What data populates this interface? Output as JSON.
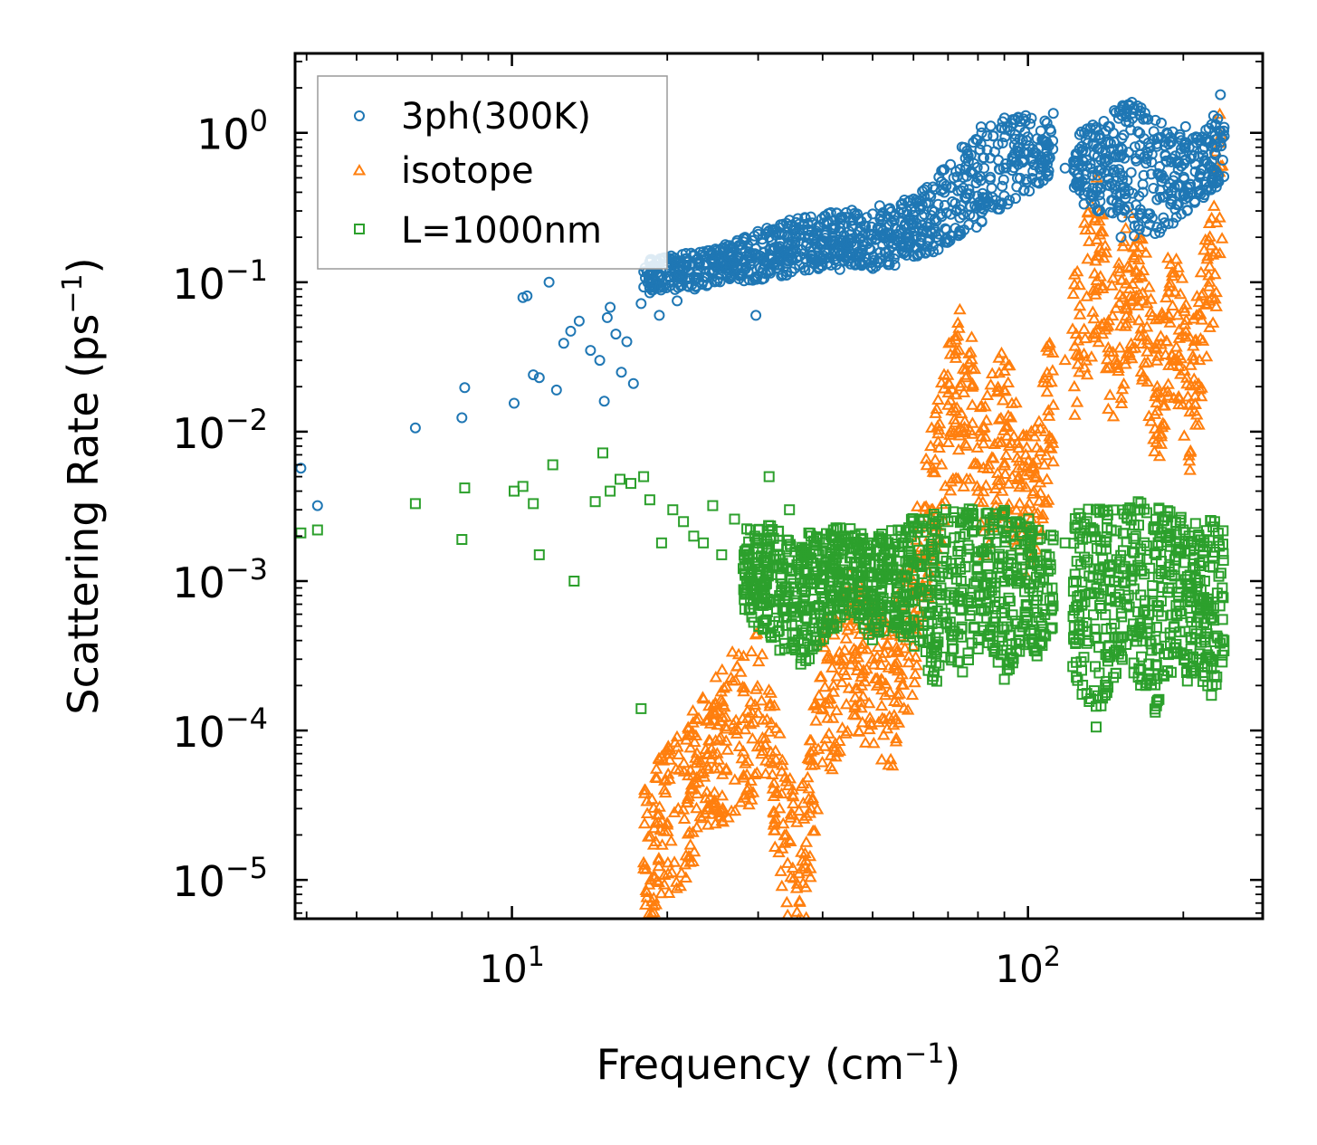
{
  "chart_data": {
    "type": "scatter",
    "xscale": "log",
    "yscale": "log",
    "xlim": [
      3.8,
      285
    ],
    "ylim": [
      5.5e-06,
      3.4
    ],
    "xlabel": "Frequency (cm",
    "xlabel_sup": "−1",
    "xlabel_end": ")",
    "ylabel": "Scattering Rate (ps",
    "ylabel_sup": "−1",
    "ylabel_end": ")",
    "x_ticks": [
      {
        "value": 10,
        "base": "10",
        "exp": "1"
      },
      {
        "value": 100,
        "base": "10",
        "exp": "2"
      }
    ],
    "y_ticks": [
      {
        "value": 1,
        "base": "10",
        "exp": "0"
      },
      {
        "value": 0.1,
        "base": "10",
        "exp": "−1"
      },
      {
        "value": 0.01,
        "base": "10",
        "exp": "−2"
      },
      {
        "value": 0.001,
        "base": "10",
        "exp": "−3"
      },
      {
        "value": 0.0001,
        "base": "10",
        "exp": "−4"
      },
      {
        "value": 1e-05,
        "base": "10",
        "exp": "−5"
      }
    ],
    "legend_position": "top-left",
    "series": [
      {
        "name": "3ph(300K)",
        "marker": "circle",
        "color": "#1f77b4",
        "x": [
          3.9,
          4.2,
          6.5,
          8.0,
          8.1,
          10.1,
          10.5,
          10.7,
          11.0,
          11.3,
          11.8,
          12.2,
          12.6,
          13.0,
          13.5,
          14.2,
          14.8,
          15.1,
          15.3,
          15.5,
          15.9,
          16.3,
          16.7,
          17.2,
          17.8,
          18.5,
          19.3,
          20.1,
          20.9,
          21.8,
          22.6,
          23.5,
          24.4,
          25.6,
          26.9,
          28.3,
          29.7,
          31.2,
          32.8,
          34.5,
          36.3,
          38.2,
          40.2,
          42.3,
          44.6,
          47.0,
          49.6,
          52.3,
          55.2,
          58.3,
          61.5,
          64.9,
          68.6,
          72.5,
          76.6,
          81.0,
          85.6,
          90.5,
          95.6,
          101.0,
          106.5,
          112.0,
          118.0,
          124.0,
          130.5,
          137.0,
          144.0,
          151.5,
          159.0,
          167.0,
          175.5,
          184.0,
          193.0,
          202.0,
          211.0,
          220.0,
          229.0,
          236.0,
          240.0
        ],
        "y": [
          0.0057,
          0.0032,
          0.0106,
          0.0124,
          0.0197,
          0.0155,
          0.079,
          0.081,
          0.024,
          0.023,
          0.1,
          0.019,
          0.039,
          0.047,
          0.055,
          0.035,
          0.03,
          0.016,
          0.058,
          0.068,
          0.045,
          0.025,
          0.04,
          0.021,
          0.072,
          0.085,
          0.06,
          0.11,
          0.075,
          0.13,
          0.09,
          0.16,
          0.115,
          0.17,
          0.14,
          0.2,
          0.06,
          0.23,
          0.17,
          0.26,
          0.21,
          0.19,
          0.15,
          0.23,
          0.18,
          0.16,
          0.21,
          0.26,
          0.13,
          0.3,
          0.35,
          0.28,
          0.42,
          0.55,
          0.7,
          0.48,
          0.95,
          0.62,
          0.8,
          1.15,
          0.9,
          1.35,
          0.58,
          0.45,
          0.85,
          0.3,
          1.1,
          0.2,
          1.6,
          0.4,
          0.9,
          0.25,
          0.7,
          1.1,
          0.55,
          0.8,
          1.3,
          1.8,
          0.95
        ],
        "density_band": {
          "x": [
            18,
            20,
            22,
            24,
            26,
            28,
            30,
            32,
            34,
            36,
            38,
            40,
            43,
            46,
            50,
            54,
            58,
            62,
            66,
            70,
            74,
            78,
            82,
            86,
            90,
            95,
            100,
            105,
            110,
            115,
            125,
            135,
            145,
            155,
            165,
            175,
            185,
            195,
            205,
            215,
            225,
            235,
            240
          ],
          "low": [
            0.09,
            0.085,
            0.09,
            0.095,
            0.1,
            0.1,
            0.1,
            0.11,
            0.11,
            0.12,
            0.12,
            0.12,
            0.12,
            0.13,
            0.12,
            0.13,
            0.14,
            0.15,
            0.16,
            0.18,
            0.2,
            0.22,
            0.25,
            0.28,
            0.32,
            0.36,
            0.4,
            0.45,
            0.5,
            0.6,
            0.35,
            0.3,
            0.25,
            0.2,
            0.18,
            0.2,
            0.22,
            0.25,
            0.3,
            0.35,
            0.4,
            0.45,
            0.5
          ],
          "high": [
            0.14,
            0.15,
            0.16,
            0.17,
            0.18,
            0.2,
            0.22,
            0.24,
            0.26,
            0.27,
            0.28,
            0.29,
            0.3,
            0.31,
            0.32,
            0.34,
            0.36,
            0.4,
            0.5,
            0.65,
            0.85,
            1.05,
            1.15,
            1.25,
            1.3,
            1.35,
            1.4,
            1.3,
            1.2,
            1.1,
            1.0,
            1.2,
            1.4,
            1.6,
            1.5,
            1.3,
            1.1,
            1.0,
            0.95,
            1.0,
            1.1,
            1.3,
            1.2
          ]
        }
      },
      {
        "name": "isotope",
        "marker": "triangle",
        "color": "#ff7f0e",
        "x": [
          18,
          19,
          20,
          21,
          22,
          23,
          24,
          25,
          26,
          27,
          28,
          29,
          30,
          31,
          32,
          33,
          34,
          35,
          36,
          37,
          38,
          40,
          42,
          44,
          46,
          48,
          50,
          52,
          54,
          56,
          58,
          60,
          62,
          65,
          68,
          70,
          72,
          74,
          76,
          78,
          80,
          84,
          88,
          92,
          96,
          100,
          104,
          108,
          112,
          118,
          124,
          130,
          136,
          142,
          148,
          155,
          162,
          170,
          178,
          186,
          195,
          205,
          215,
          225,
          232,
          238
        ],
        "y": [
          1.3e-05,
          1.8e-05,
          2.4e-05,
          3e-05,
          3.6e-05,
          4.5e-05,
          5.5e-05,
          7e-05,
          8.5e-05,
          0.0001,
          0.00012,
          0.00011,
          0.00013,
          8e-05,
          6e-05,
          3e-05,
          2e-05,
          1.2e-05,
          1.1e-05,
          1.5e-05,
          3e-05,
          0.00014,
          0.0002,
          0.0003,
          0.00035,
          0.00025,
          0.0003,
          0.00022,
          0.00018,
          0.00025,
          0.0004,
          0.0006,
          0.0015,
          0.003,
          0.006,
          0.015,
          0.012,
          0.02,
          0.008,
          0.015,
          0.004,
          0.006,
          0.012,
          0.008,
          0.005,
          0.003,
          0.005,
          0.01,
          0.015,
          0.03,
          0.045,
          0.08,
          0.15,
          0.05,
          0.03,
          0.07,
          0.12,
          0.05,
          0.02,
          0.04,
          0.06,
          0.015,
          0.03,
          0.1,
          0.25,
          0.6
        ]
      },
      {
        "name": "L=1000nm",
        "marker": "square",
        "color": "#2ca02c",
        "x": [
          3.9,
          4.2,
          6.5,
          8.0,
          8.1,
          10.1,
          10.5,
          11.0,
          11.3,
          12.0,
          13.2,
          14.5,
          15.0,
          15.5,
          16.2,
          17.0,
          17.8,
          18.0,
          18.5,
          19.5,
          20.5,
          21.5,
          22.5,
          23.5,
          24.5,
          25.5,
          27.0,
          28.5,
          30.0,
          31.5,
          33.0,
          34.5,
          36.0,
          38.0,
          40.0,
          42.0,
          44.0,
          46.5,
          49.0,
          52.0,
          55.0,
          58.0,
          61.0,
          64.0,
          67.0,
          70.0,
          74.0,
          78.0,
          82.0,
          86.0,
          90.0,
          95.0,
          100.0,
          106.0,
          112.0,
          118.0,
          124.0,
          130.0,
          137.0,
          145.0,
          153.0,
          161.0,
          170.0,
          180.0,
          190.0,
          200.0,
          210.0,
          220.0,
          230.0,
          238.0
        ],
        "y": [
          0.0021,
          0.0022,
          0.0033,
          0.0019,
          0.0042,
          0.004,
          0.0043,
          0.0033,
          0.0015,
          0.006,
          0.001,
          0.0034,
          0.0072,
          0.004,
          0.0048,
          0.0045,
          0.00014,
          0.005,
          0.0035,
          0.0018,
          0.003,
          0.0025,
          0.002,
          0.0018,
          0.0032,
          0.0015,
          0.0026,
          0.001,
          0.0022,
          0.005,
          0.0008,
          0.003,
          0.0012,
          0.002,
          0.0016,
          0.0014,
          0.002,
          0.0011,
          0.0018,
          0.0009,
          0.0016,
          0.0022,
          0.0013,
          0.0008,
          0.0019,
          0.0025,
          0.0012,
          0.003,
          0.0016,
          0.0022,
          0.001,
          0.0025,
          0.0015,
          0.0012,
          0.002,
          0.0018,
          0.001,
          0.0025,
          0.0012,
          0.0022,
          0.0016,
          0.003,
          0.0014,
          0.002,
          0.0011,
          0.0022,
          0.0015,
          0.001,
          0.0025,
          0.0009
        ],
        "density_band": {
          "x": [
            28,
            30,
            32,
            34,
            36,
            38,
            40,
            43,
            46,
            50,
            54,
            58,
            62,
            66,
            70,
            74,
            78,
            82,
            86,
            90,
            95,
            100,
            105,
            110,
            125,
            135,
            145,
            155,
            165,
            175,
            185,
            195,
            205,
            215,
            225,
            235,
            240
          ],
          "low": [
            0.0006,
            0.0005,
            0.0004,
            0.0003,
            0.0002,
            0.0003,
            0.0004,
            0.0005,
            0.0006,
            0.0004,
            0.0005,
            0.0004,
            0.0003,
            0.0002,
            0.0003,
            0.0002,
            0.0003,
            0.0004,
            0.0003,
            0.0002,
            0.0003,
            0.0004,
            0.0003,
            0.0005,
            0.0002,
            0.0001,
            0.0002,
            0.0003,
            0.0002,
            0.0001,
            0.0002,
            0.0003,
            0.0002,
            0.0003,
            0.0001,
            0.0002,
            0.0003
          ],
          "high": [
            0.0025,
            0.0022,
            0.0025,
            0.002,
            0.0018,
            0.0022,
            0.002,
            0.0025,
            0.0022,
            0.002,
            0.0022,
            0.0025,
            0.003,
            0.0028,
            0.0032,
            0.003,
            0.0035,
            0.003,
            0.0028,
            0.003,
            0.0025,
            0.0028,
            0.0022,
            0.002,
            0.003,
            0.0035,
            0.0032,
            0.003,
            0.0035,
            0.0032,
            0.003,
            0.0028,
            0.0025,
            0.0028,
            0.003,
            0.0025,
            0.0022
          ]
        }
      }
    ]
  }
}
